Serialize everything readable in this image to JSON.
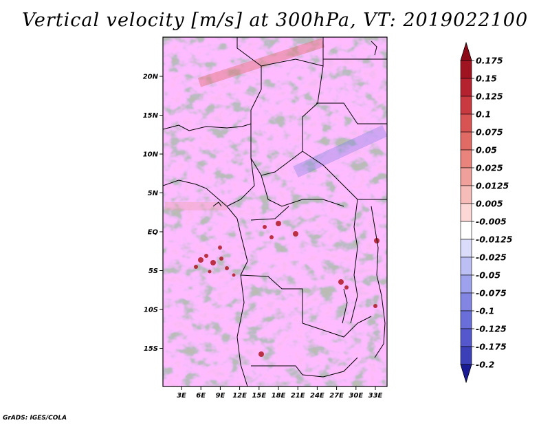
{
  "title": "Vertical velocity [m/s] at 300hPa, VT: 2019022100",
  "credit": "GrADS: IGES/COLA",
  "map": {
    "variable": "Vertical velocity",
    "units": "m/s",
    "level": "300hPa",
    "valid_time": "2019022100",
    "lat_ticks": [
      {
        "value": 20,
        "label": "20N"
      },
      {
        "value": 15,
        "label": "15N"
      },
      {
        "value": 10,
        "label": "10N"
      },
      {
        "value": 5,
        "label": "5N"
      },
      {
        "value": 0,
        "label": "EQ"
      },
      {
        "value": -5,
        "label": "5S"
      },
      {
        "value": -10,
        "label": "10S"
      },
      {
        "value": -15,
        "label": "15S"
      }
    ],
    "lon_ticks": [
      {
        "value": 3,
        "label": "3E"
      },
      {
        "value": 6,
        "label": "6E"
      },
      {
        "value": 9,
        "label": "9E"
      },
      {
        "value": 12,
        "label": "12E"
      },
      {
        "value": 15,
        "label": "15E"
      },
      {
        "value": 18,
        "label": "18E"
      },
      {
        "value": 21,
        "label": "21E"
      },
      {
        "value": 24,
        "label": "24E"
      },
      {
        "value": 27,
        "label": "27E"
      },
      {
        "value": 30,
        "label": "30E"
      },
      {
        "value": 33,
        "label": "33E"
      }
    ]
  },
  "colorbar": {
    "levels": [
      {
        "label": "0.175",
        "color": "#a01422"
      },
      {
        "label": "0.15",
        "color": "#b42230"
      },
      {
        "label": "0.125",
        "color": "#c83a40"
      },
      {
        "label": "0.1",
        "color": "#d85452"
      },
      {
        "label": "0.075",
        "color": "#e06a64"
      },
      {
        "label": "0.05",
        "color": "#e8847c"
      },
      {
        "label": "0.025",
        "color": "#f0a09a"
      },
      {
        "label": "0.0125",
        "color": "#f6bcb8"
      },
      {
        "label": "0.005",
        "color": "#fbd8d6"
      },
      {
        "label": "-0.005",
        "color": "#ffffff"
      },
      {
        "label": "-0.0125",
        "color": "#dadcfa"
      },
      {
        "label": "-0.025",
        "color": "#bcbff4"
      },
      {
        "label": "-0.05",
        "color": "#9ea2ec"
      },
      {
        "label": "-0.075",
        "color": "#8286e2"
      },
      {
        "label": "-0.1",
        "color": "#6a6ed8"
      },
      {
        "label": "-0.125",
        "color": "#5458cc"
      },
      {
        "label": "-0.175",
        "color": "#3c40b8"
      },
      {
        "label": "-0.2",
        "color": "#2a2ca4"
      }
    ],
    "top_color": "#8c0a18",
    "bottom_color": "#1a1a94"
  }
}
